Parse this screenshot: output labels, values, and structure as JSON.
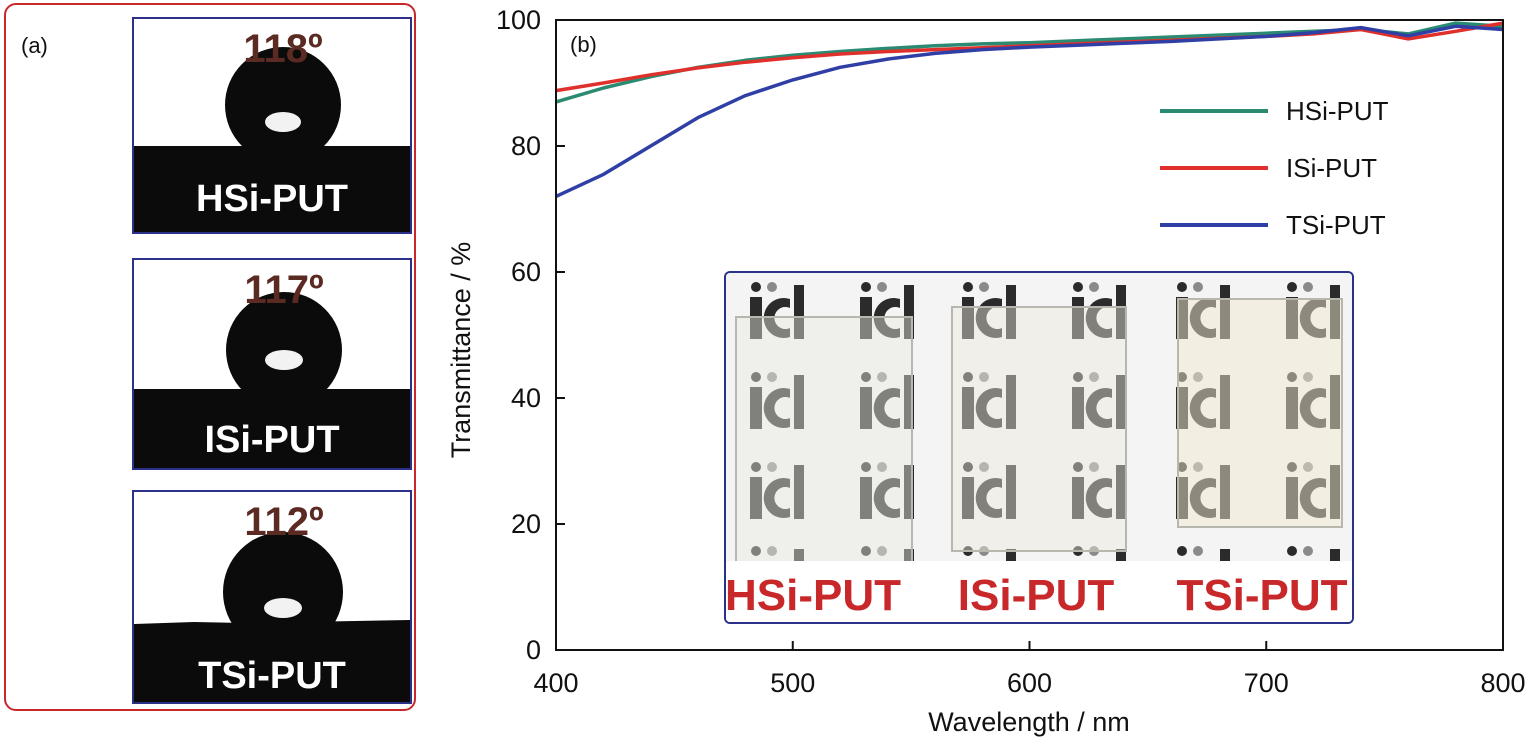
{
  "panel_a": {
    "letter": "(a)",
    "samples": [
      {
        "angle": "118º",
        "label": "HSi-PUT"
      },
      {
        "angle": "117º",
        "label": "ISi-PUT"
      },
      {
        "angle": "112º",
        "label": "TSi-PUT"
      }
    ]
  },
  "panel_b": {
    "letter": "(b)",
    "inset_labels": [
      "HSi-PUT",
      "ISi-PUT",
      "TSi-PUT"
    ]
  },
  "colors": {
    "HSi-PUT": "#2a8a72",
    "ISi-PUT": "#e0302b",
    "TSi-PUT": "#2f3fa6",
    "frame_red": "#c8282a",
    "frame_blue": "#2b3188",
    "angle_text": "#5b2a22"
  },
  "chart_data": {
    "type": "line",
    "xlabel": "Wavelength / nm",
    "ylabel": "Transmittance / %",
    "xlim": [
      400,
      800
    ],
    "ylim": [
      0,
      100
    ],
    "xticks": [
      400,
      500,
      600,
      700,
      800
    ],
    "yticks": [
      0,
      20,
      40,
      60,
      80,
      100
    ],
    "legend_position": "top-right",
    "x": [
      400,
      420,
      440,
      460,
      480,
      500,
      520,
      540,
      560,
      580,
      600,
      620,
      640,
      660,
      680,
      700,
      720,
      740,
      760,
      780,
      800
    ],
    "series": [
      {
        "name": "HSi-PUT",
        "values": [
          87,
          89.2,
          91,
          92.5,
          93.6,
          94.4,
          95,
          95.5,
          95.9,
          96.2,
          96.4,
          96.7,
          97,
          97.3,
          97.6,
          97.9,
          98.2,
          98.5,
          97.8,
          99.5,
          99
        ]
      },
      {
        "name": "ISi-PUT",
        "values": [
          88.8,
          90,
          91.3,
          92.4,
          93.3,
          94,
          94.6,
          95,
          95.3,
          95.6,
          95.9,
          96.2,
          96.5,
          96.8,
          97.1,
          97.4,
          97.8,
          98.5,
          97,
          98.2,
          99.5
        ]
      },
      {
        "name": "TSi-PUT",
        "values": [
          72,
          75.5,
          80,
          84.5,
          88,
          90.5,
          92.5,
          93.8,
          94.7,
          95.3,
          95.7,
          96,
          96.3,
          96.6,
          97,
          97.4,
          98,
          98.8,
          97.5,
          99,
          98.5
        ]
      }
    ]
  }
}
